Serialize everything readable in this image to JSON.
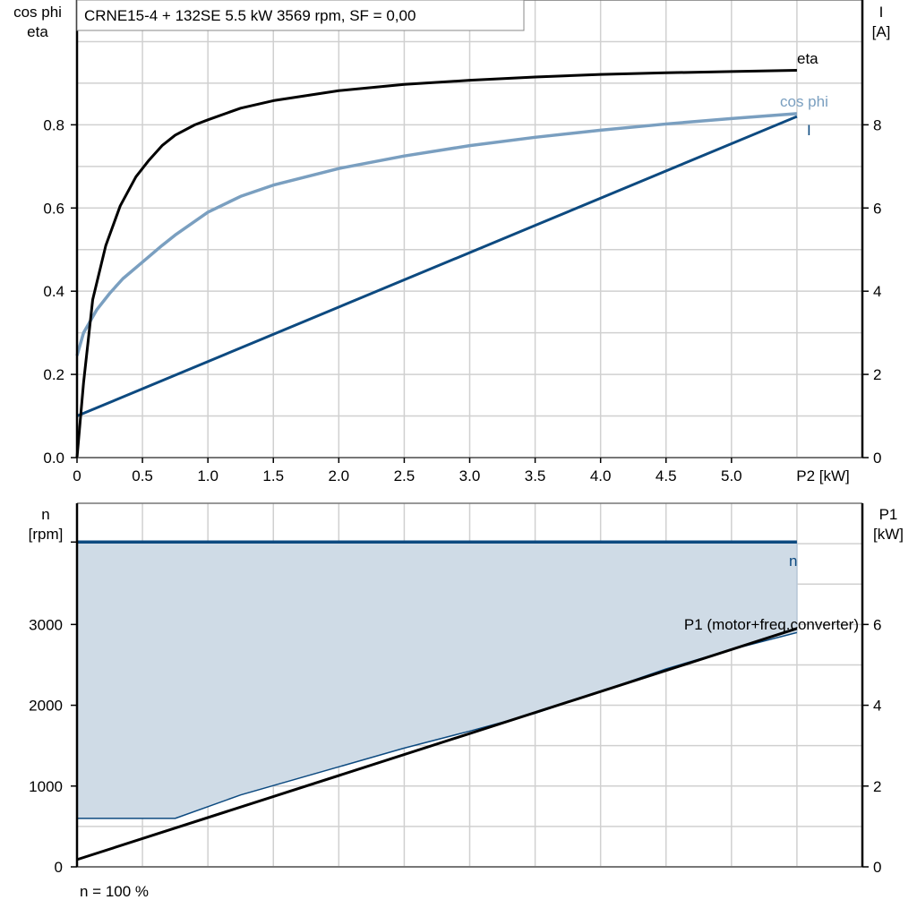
{
  "title": "CRNE15-4 + 132SE   5.5 kW   3569 rpm, SF = 0,00",
  "footer_note": "n = 100 %",
  "colors": {
    "eta": "#000000",
    "cos_phi": "#7a9fc0",
    "I": "#0d4a80",
    "n": "#0d4a80",
    "fill": "#cfdbe6",
    "P1": "#000000",
    "grid": "#d0d0d0"
  },
  "chart_data": [
    {
      "type": "line",
      "xlabel": "P2 [kW]",
      "ylabel_left": [
        "cos phi",
        "eta"
      ],
      "ylabel_right": [
        "I",
        "[A]"
      ],
      "xlim": [
        0,
        6
      ],
      "ylim_left": [
        0,
        1.1
      ],
      "ylim_right": [
        0,
        11
      ],
      "grid": true,
      "x_ticks": [
        "0",
        "0.5",
        "1.0",
        "1.5",
        "2.0",
        "2.5",
        "3.0",
        "3.5",
        "4.0",
        "4.5",
        "5.0"
      ],
      "x_tick_values": [
        0,
        0.5,
        1.0,
        1.5,
        2.0,
        2.5,
        3.0,
        3.5,
        4.0,
        4.5,
        5.0
      ],
      "y_left_ticks": [
        "0.0",
        "0.2",
        "0.4",
        "0.6",
        "0.8"
      ],
      "y_left_tick_values": [
        0,
        0.2,
        0.4,
        0.6,
        0.8
      ],
      "y_right_ticks": [
        "0",
        "2",
        "4",
        "6",
        "8"
      ],
      "y_right_tick_values": [
        0,
        2,
        4,
        6,
        8
      ],
      "series": [
        {
          "name": "eta",
          "axis": "left",
          "x": [
            0,
            0.05,
            0.12,
            0.22,
            0.33,
            0.45,
            0.55,
            0.65,
            0.75,
            0.9,
            1.0,
            1.25,
            1.5,
            2.0,
            2.5,
            3.0,
            3.5,
            4.0,
            4.5,
            5.0,
            5.5
          ],
          "y": [
            0,
            0.18,
            0.38,
            0.51,
            0.605,
            0.675,
            0.715,
            0.75,
            0.775,
            0.8,
            0.812,
            0.84,
            0.858,
            0.882,
            0.897,
            0.907,
            0.915,
            0.921,
            0.925,
            0.928,
            0.931
          ]
        },
        {
          "name": "cos phi",
          "axis": "left",
          "x": [
            0,
            0.05,
            0.15,
            0.25,
            0.35,
            0.5,
            0.65,
            0.75,
            1.0,
            1.25,
            1.5,
            2.0,
            2.5,
            3.0,
            3.5,
            4.0,
            4.5,
            5.0,
            5.5
          ],
          "y": [
            0.245,
            0.3,
            0.355,
            0.395,
            0.43,
            0.47,
            0.51,
            0.535,
            0.59,
            0.628,
            0.655,
            0.695,
            0.725,
            0.75,
            0.77,
            0.787,
            0.802,
            0.815,
            0.827
          ]
        },
        {
          "name": "I",
          "axis": "right",
          "x": [
            0,
            5.5
          ],
          "y": [
            1.0,
            8.2
          ]
        }
      ]
    },
    {
      "type": "area",
      "xlim": [
        0,
        6
      ],
      "ylabel_left": [
        "n",
        "[rpm]"
      ],
      "ylabel_right": [
        "P1",
        "[kW]"
      ],
      "ylim_left": [
        0,
        4500
      ],
      "ylim_right": [
        0,
        9
      ],
      "grid": true,
      "y_left_ticks": [
        "0",
        "1000",
        "2000",
        "3000"
      ],
      "y_left_tick_values": [
        0,
        1000,
        2000,
        3000
      ],
      "y_right_ticks": [
        "0",
        "2",
        "4",
        "6"
      ],
      "y_right_tick_values": [
        0,
        2,
        4,
        6
      ],
      "series": [
        {
          "name": "n",
          "axis": "left",
          "x": [
            0,
            5.5
          ],
          "y": [
            4020,
            4020
          ]
        },
        {
          "axis": "left",
          "role": "lower-boundary",
          "x": [
            0,
            0.75,
            1.25,
            2.5,
            3.0,
            3.5,
            4.0,
            4.5,
            5.0,
            5.5
          ],
          "y": [
            600,
            600,
            890,
            1470,
            1680,
            1900,
            2170,
            2450,
            2690,
            2900
          ]
        },
        {
          "name": "P1 (motor+freq.converter)",
          "axis": "right",
          "x": [
            0,
            5.5
          ],
          "y": [
            0.18,
            5.9
          ]
        }
      ]
    }
  ]
}
